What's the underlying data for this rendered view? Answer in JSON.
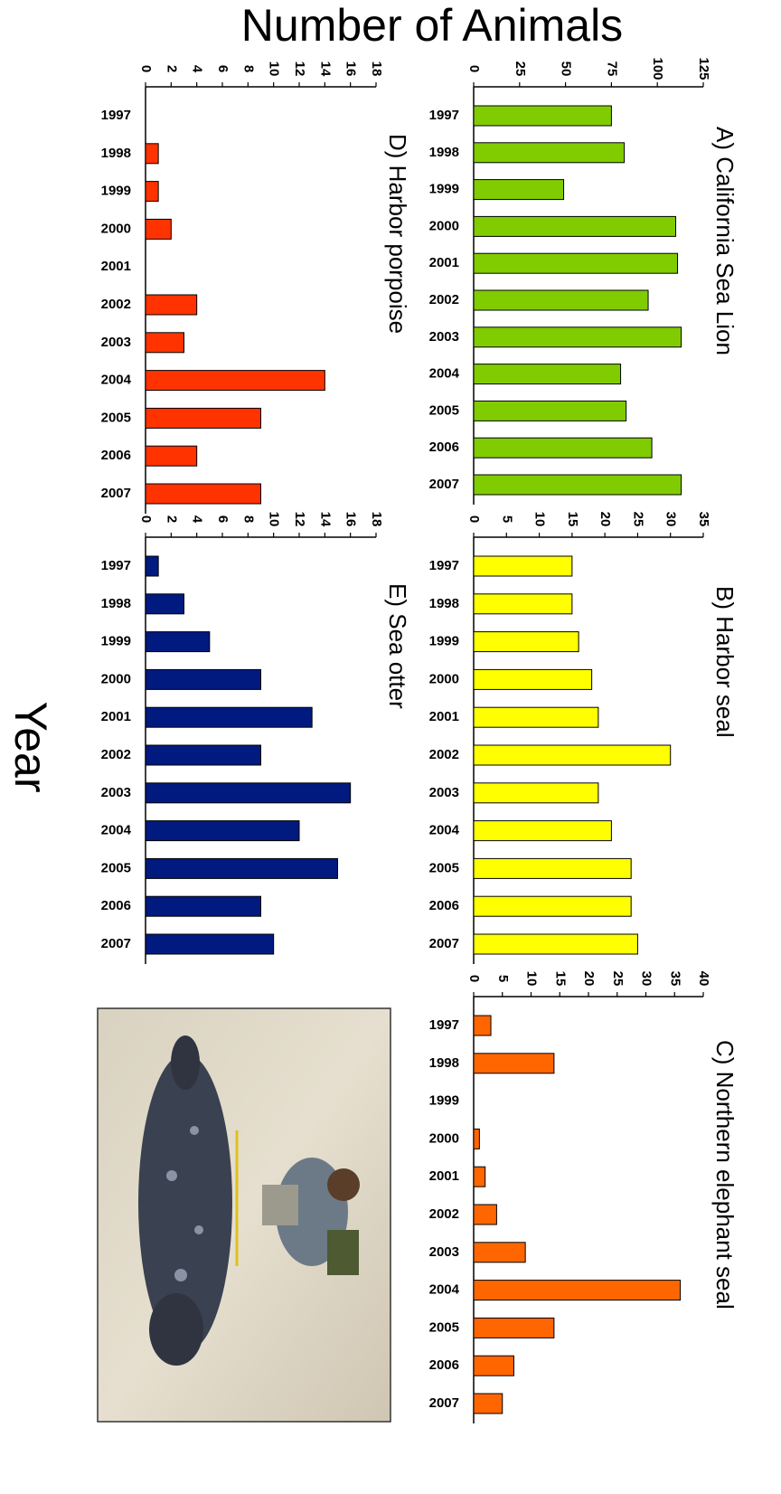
{
  "figure_title": "Number of Animals",
  "figure_xlabel": "Year",
  "chart_data": [
    {
      "type": "bar",
      "title": "A) California Sea Lion",
      "categories": [
        "1997",
        "1998",
        "1999",
        "2000",
        "2001",
        "2002",
        "2003",
        "2004",
        "2005",
        "2006",
        "2007"
      ],
      "values": [
        75,
        82,
        49,
        110,
        111,
        95,
        113,
        80,
        83,
        97,
        113
      ],
      "color": "#80cc00",
      "ylim": [
        0,
        125
      ],
      "yticks": [
        0,
        25,
        50,
        75,
        100,
        125
      ]
    },
    {
      "type": "bar",
      "title": "B) Harbor seal",
      "categories": [
        "1997",
        "1998",
        "1999",
        "2000",
        "2001",
        "2002",
        "2003",
        "2004",
        "2005",
        "2006",
        "2007"
      ],
      "values": [
        15,
        15,
        16,
        18,
        19,
        30,
        19,
        21,
        24,
        24,
        25
      ],
      "color": "#ffff00",
      "ylim": [
        0,
        35
      ],
      "yticks": [
        0,
        5,
        10,
        15,
        20,
        25,
        30,
        35
      ]
    },
    {
      "type": "bar",
      "title": "C) Northern elephant seal",
      "categories": [
        "1997",
        "1998",
        "1999",
        "2000",
        "2001",
        "2002",
        "2003",
        "2004",
        "2005",
        "2006",
        "2007"
      ],
      "values": [
        3,
        14,
        0,
        1,
        2,
        4,
        9,
        36,
        14,
        7,
        5
      ],
      "color": "#ff6600",
      "ylim": [
        0,
        40
      ],
      "yticks": [
        0,
        5,
        10,
        15,
        20,
        25,
        30,
        35,
        40
      ]
    },
    {
      "type": "bar",
      "title": "D) Harbor porpoise",
      "categories": [
        "1997",
        "1998",
        "1999",
        "2000",
        "2001",
        "2002",
        "2003",
        "2004",
        "2005",
        "2006",
        "2007"
      ],
      "values": [
        0,
        1,
        1,
        2,
        0,
        4,
        3,
        14,
        9,
        4,
        9
      ],
      "color": "#ff3300",
      "ylim": [
        0,
        18
      ],
      "yticks": [
        0,
        2,
        4,
        6,
        8,
        10,
        12,
        14,
        16,
        18
      ]
    },
    {
      "type": "bar",
      "title": "E) Sea otter",
      "categories": [
        "1997",
        "1998",
        "1999",
        "2000",
        "2001",
        "2002",
        "2003",
        "2004",
        "2005",
        "2006",
        "2007"
      ],
      "values": [
        1,
        3,
        5,
        9,
        13,
        9,
        16,
        12,
        15,
        9,
        10
      ],
      "color": "#001a80",
      "ylim": [
        0,
        18
      ],
      "yticks": [
        0,
        2,
        4,
        6,
        8,
        10,
        12,
        14,
        16,
        18
      ]
    }
  ]
}
